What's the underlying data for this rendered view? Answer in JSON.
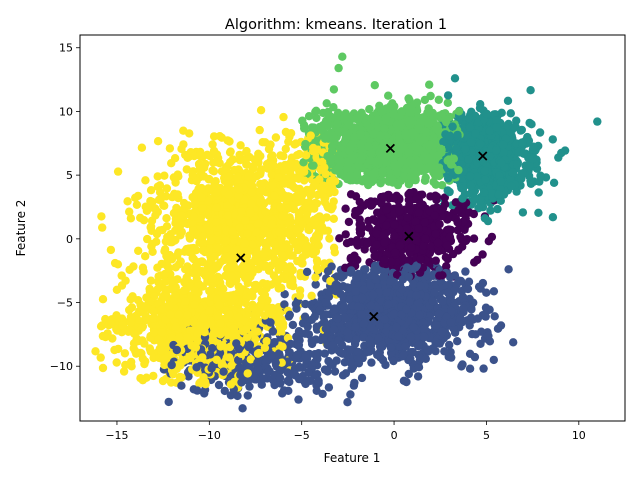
{
  "chart_data": {
    "type": "scatter",
    "title": "Algorithm: kmeans. Iteration 1",
    "xlabel": "Feature 1",
    "ylabel": "Feature 2",
    "xlim": [
      -17,
      12.5
    ],
    "ylim": [
      -14.3,
      16
    ],
    "xticks": [
      -15,
      -10,
      -5,
      0,
      5,
      10
    ],
    "yticks": [
      -10,
      -5,
      0,
      5,
      10,
      15
    ],
    "grid": false,
    "legend": "none",
    "colors": {
      "purple": "#440154",
      "blue": "#3b528b",
      "teal": "#21918c",
      "green": "#5ec962",
      "yellow": "#fde725",
      "centroid": "#000000"
    },
    "clusters": [
      {
        "color": "yellow",
        "points": 2200,
        "regions": [
          {
            "center": [
              -8.2,
              1.2
            ],
            "spread": [
              2.6,
              2.9
            ],
            "weight": 0.55
          },
          {
            "center": [
              -10.8,
              -7.0
            ],
            "spread": [
              2.2,
              2.1
            ],
            "weight": 0.4
          },
          {
            "center": [
              -4.0,
              5.5
            ],
            "spread": [
              1.2,
              1.4
            ],
            "weight": 0.05
          }
        ],
        "extent": {
          "x": [
            -16.2,
            -3.0
          ],
          "y": [
            -11.8,
            10.0
          ]
        }
      },
      {
        "color": "green",
        "points": 1400,
        "regions": [
          {
            "center": [
              -0.2,
              7.2
            ],
            "spread": [
              2.3,
              1.5
            ],
            "weight": 1.0
          }
        ],
        "extent": {
          "x": [
            -5.0,
            3.6
          ],
          "y": [
            4.2,
            14.3
          ]
        }
      },
      {
        "color": "teal",
        "points": 900,
        "regions": [
          {
            "center": [
              4.8,
              6.5
            ],
            "spread": [
              1.3,
              1.6
            ],
            "weight": 1.0
          }
        ],
        "extent": {
          "x": [
            2.6,
            11.0
          ],
          "y": [
            0.6,
            12.7
          ]
        }
      },
      {
        "color": "purple",
        "points": 500,
        "regions": [
          {
            "center": [
              0.8,
              0.3
            ],
            "spread": [
              1.8,
              1.8
            ],
            "weight": 1.0
          }
        ],
        "extent": {
          "x": [
            -3.0,
            5.6
          ],
          "y": [
            -3.0,
            3.8
          ]
        }
      },
      {
        "color": "blue",
        "points": 1500,
        "regions": [
          {
            "center": [
              0.0,
              -5.8
            ],
            "spread": [
              2.2,
              1.8
            ],
            "weight": 0.75
          },
          {
            "center": [
              -7.0,
              -9.5
            ],
            "spread": [
              2.6,
              1.3
            ],
            "weight": 0.25
          }
        ],
        "extent": {
          "x": [
            -12.5,
            6.5
          ],
          "y": [
            -13.3,
            -2.0
          ]
        }
      }
    ],
    "outliers": [
      {
        "x": 11.0,
        "y": 9.2,
        "color": "teal"
      },
      {
        "x": 8.6,
        "y": 1.7,
        "color": "teal"
      },
      {
        "x": 3.3,
        "y": 12.6,
        "color": "teal"
      },
      {
        "x": -2.8,
        "y": 14.3,
        "color": "green"
      },
      {
        "x": -3.0,
        "y": 13.4,
        "color": "green"
      },
      {
        "x": 1.9,
        "y": 12.1,
        "color": "green"
      },
      {
        "x": -7.2,
        "y": 10.1,
        "color": "yellow"
      },
      {
        "x": -11.0,
        "y": 6.8,
        "color": "yellow"
      },
      {
        "x": -15.8,
        "y": -6.8,
        "color": "yellow"
      },
      {
        "x": -15.0,
        "y": -4.0,
        "color": "yellow"
      },
      {
        "x": -8.2,
        "y": -13.3,
        "color": "blue"
      },
      {
        "x": -12.2,
        "y": -12.8,
        "color": "blue"
      },
      {
        "x": 1.3,
        "y": -10.8,
        "color": "blue"
      },
      {
        "x": 5.4,
        "y": -9.5,
        "color": "blue"
      },
      {
        "x": -4.2,
        "y": -11.5,
        "color": "blue"
      }
    ],
    "centroids": [
      {
        "x": -0.2,
        "y": 7.1
      },
      {
        "x": 4.8,
        "y": 6.5
      },
      {
        "x": 0.8,
        "y": 0.2
      },
      {
        "x": -8.3,
        "y": -1.5
      },
      {
        "x": -1.1,
        "y": -6.1
      }
    ]
  }
}
